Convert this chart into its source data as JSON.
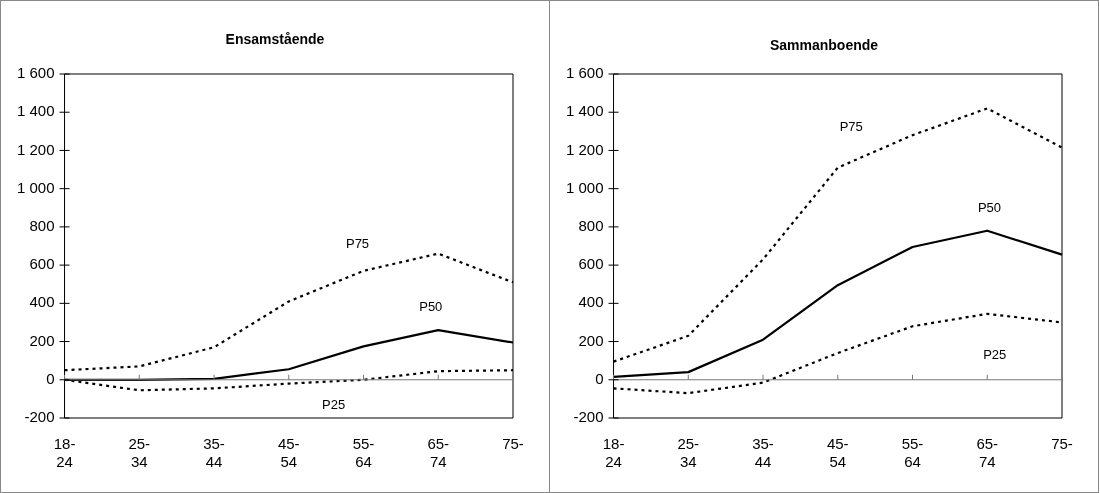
{
  "chart_data": [
    {
      "type": "line",
      "title": "Ensamstående",
      "categories": [
        "18-24",
        "25-34",
        "35-44",
        "45-54",
        "55-64",
        "65-74",
        "75-"
      ],
      "series": [
        {
          "name": "P75",
          "color": "#000000",
          "line_style": "dotted",
          "values": [
            50,
            70,
            170,
            410,
            570,
            660,
            510
          ]
        },
        {
          "name": "P50",
          "color": "#000000",
          "line_style": "solid",
          "values": [
            0,
            0,
            5,
            55,
            175,
            260,
            195
          ]
        },
        {
          "name": "P25",
          "color": "#000000",
          "line_style": "dotted",
          "values": [
            0,
            -55,
            -45,
            -20,
            0,
            45,
            50
          ]
        }
      ],
      "ylim": [
        -200,
        1600
      ],
      "yticks": [
        -200,
        0,
        200,
        400,
        600,
        800,
        {
          "value": 1000,
          "label": "1 000"
        },
        {
          "value": 1200,
          "label": "1 200"
        },
        {
          "value": 1400,
          "label": "1 400"
        },
        {
          "value": 1600,
          "label": "1 600"
        }
      ],
      "ref_lines": [
        {
          "axis": "y",
          "value": 0,
          "color": "#777777"
        }
      ],
      "grid": false,
      "legend": false,
      "marker": "none"
    },
    {
      "type": "line",
      "title": "Sammanboende",
      "categories": [
        "18-24",
        "25-34",
        "35-44",
        "45-54",
        "55-64",
        "65-74",
        "75-"
      ],
      "series": [
        {
          "name": "P75",
          "color": "#000000",
          "line_style": "dotted",
          "values": [
            95,
            230,
            630,
            1110,
            1280,
            1420,
            1215
          ]
        },
        {
          "name": "P50",
          "color": "#000000",
          "line_style": "solid",
          "values": [
            15,
            40,
            210,
            495,
            695,
            780,
            655
          ]
        },
        {
          "name": "P25",
          "color": "#000000",
          "line_style": "dotted",
          "values": [
            -45,
            -70,
            -15,
            140,
            280,
            345,
            300
          ]
        }
      ],
      "ylim": [
        -200,
        1600
      ],
      "yticks": [
        -200,
        0,
        200,
        400,
        600,
        800,
        {
          "value": 1000,
          "label": "1 000"
        },
        {
          "value": 1200,
          "label": "1 200"
        },
        {
          "value": 1400,
          "label": "1 400"
        },
        {
          "value": 1600,
          "label": "1 600"
        }
      ],
      "ref_lines": [
        {
          "axis": "y",
          "value": 0,
          "color": "#777777"
        }
      ],
      "grid": false,
      "legend": false,
      "marker": "none"
    }
  ]
}
